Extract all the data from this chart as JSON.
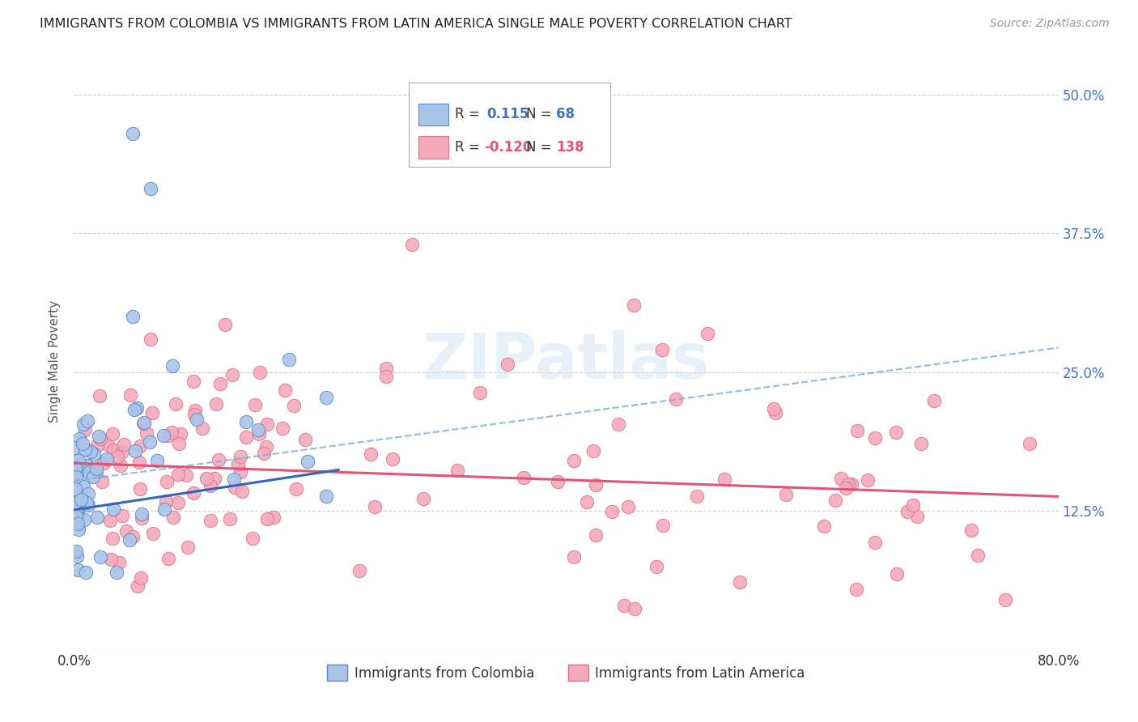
{
  "title": "IMMIGRANTS FROM COLOMBIA VS IMMIGRANTS FROM LATIN AMERICA SINGLE MALE POVERTY CORRELATION CHART",
  "source": "Source: ZipAtlas.com",
  "ylabel": "Single Male Poverty",
  "xlim": [
    0.0,
    0.8
  ],
  "ylim": [
    0.0,
    0.52
  ],
  "xticks": [
    0.0,
    0.2,
    0.4,
    0.6,
    0.8
  ],
  "xticklabels": [
    "0.0%",
    "",
    "",
    "",
    "80.0%"
  ],
  "yticks_right": [
    0.0,
    0.125,
    0.25,
    0.375,
    0.5
  ],
  "yticklabels_right": [
    "",
    "12.5%",
    "25.0%",
    "37.5%",
    "50.0%"
  ],
  "colombia_color": "#aac4e8",
  "colombia_edge": "#5588cc",
  "latin_color": "#f4aabb",
  "latin_edge": "#e07090",
  "trend_colombia_color": "#3366bb",
  "trend_latin_color": "#e05575",
  "trend_dashed_color": "#7bafd4",
  "background_color": "#ffffff",
  "grid_color": "#cccccc",
  "watermark": "ZIPatlas",
  "legend_label_colombia": "Immigrants from Colombia",
  "legend_label_latin": "Immigrants from Latin America",
  "title_fontsize": 11.5,
  "source_fontsize": 10,
  "colombia_R": 0.115,
  "colombia_N": 68,
  "latin_R": -0.12,
  "latin_N": 138,
  "legend_R_color": "#4472c4",
  "legend_R_neg_color": "#e05575"
}
